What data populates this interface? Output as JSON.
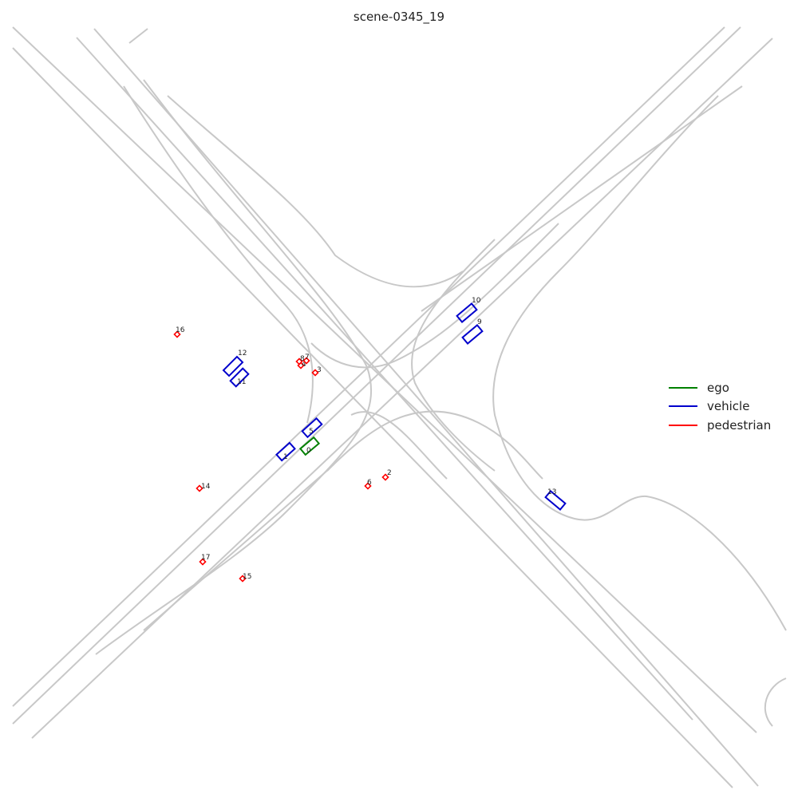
{
  "title": "scene-0345_19",
  "legend": [
    {
      "label": "ego",
      "color": "#008000"
    },
    {
      "label": "vehicle",
      "color": "#0000cc"
    },
    {
      "label": "pedestrian",
      "color": "#ff0000"
    }
  ],
  "colors": {
    "lane": "#c8c8c8",
    "ego": "#008000",
    "vehicle": "#0000cc",
    "pedestrian": "#ff0000"
  },
  "agents": [
    {
      "id": "0",
      "type": "ego"
    },
    {
      "id": "1",
      "type": "vehicle"
    },
    {
      "id": "2",
      "type": "pedestrian"
    },
    {
      "id": "3",
      "type": "pedestrian"
    },
    {
      "id": "4",
      "type": "pedestrian"
    },
    {
      "id": "5",
      "type": "vehicle"
    },
    {
      "id": "6",
      "type": "pedestrian"
    },
    {
      "id": "7",
      "type": "pedestrian"
    },
    {
      "id": "8",
      "type": "pedestrian"
    },
    {
      "id": "9",
      "type": "vehicle"
    },
    {
      "id": "10",
      "type": "vehicle"
    },
    {
      "id": "11",
      "type": "vehicle"
    },
    {
      "id": "12",
      "type": "vehicle"
    },
    {
      "id": "13",
      "type": "vehicle"
    },
    {
      "id": "14",
      "type": "pedestrian"
    },
    {
      "id": "15",
      "type": "pedestrian"
    },
    {
      "id": "16",
      "type": "pedestrian"
    },
    {
      "id": "17",
      "type": "pedestrian"
    }
  ]
}
